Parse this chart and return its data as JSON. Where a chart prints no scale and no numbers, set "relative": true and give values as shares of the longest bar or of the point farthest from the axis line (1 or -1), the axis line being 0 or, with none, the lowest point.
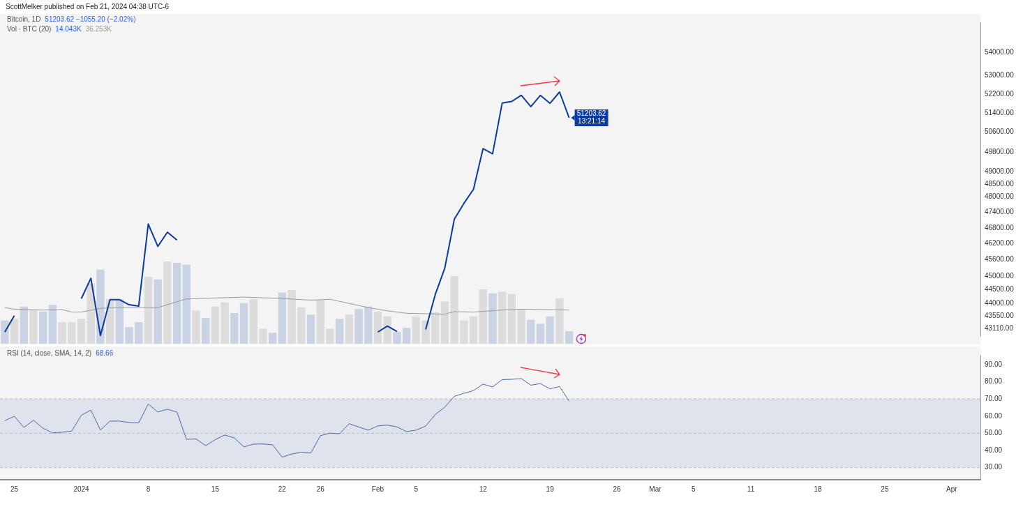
{
  "chart_data": [
    {
      "type": "line",
      "title": "ScottMelker published on Feb 21, 2024 04:38 UTC-6",
      "subtitle": "Bitcoin, 1D",
      "x": [
        "2023-12-24",
        "2023-12-25",
        "2023-12-26",
        "2023-12-27",
        "2023-12-28",
        "2023-12-29",
        "2023-12-30",
        "2023-12-31",
        "2024-01-01",
        "2024-01-02",
        "2024-01-03",
        "2024-01-04",
        "2024-01-05",
        "2024-01-06",
        "2024-01-07",
        "2024-01-08",
        "2024-01-09",
        "2024-01-10",
        "2024-01-11",
        "2024-01-12",
        "2024-01-13",
        "2024-01-14",
        "2024-01-15",
        "2024-01-16",
        "2024-01-17",
        "2024-01-18",
        "2024-01-19",
        "2024-01-20",
        "2024-01-21",
        "2024-01-22",
        "2024-01-23",
        "2024-01-24",
        "2024-01-25",
        "2024-01-26",
        "2024-01-27",
        "2024-01-28",
        "2024-01-29",
        "2024-01-30",
        "2024-01-31",
        "2024-02-01",
        "2024-02-02",
        "2024-02-03",
        "2024-02-04",
        "2024-02-05",
        "2024-02-06",
        "2024-02-07",
        "2024-02-08",
        "2024-02-09",
        "2024-02-10",
        "2024-02-11",
        "2024-02-12",
        "2024-02-13",
        "2024-02-14",
        "2024-02-15",
        "2024-02-16",
        "2024-02-17",
        "2024-02-18",
        "2024-02-19",
        "2024-02-20",
        "2024-02-21"
      ],
      "series": [
        {
          "color": "#0b3a9e",
          "values": [
            42990,
            43570,
            null,
            null,
            null,
            null,
            null,
            null,
            44180,
            44920,
            42870,
            44140,
            44140,
            43960,
            43910,
            46950,
            46100,
            46640,
            46340,
            null,
            null,
            null,
            null,
            null,
            null,
            null,
            null,
            null,
            null,
            null,
            null,
            null,
            null,
            null,
            null,
            null,
            null,
            null,
            null,
            42990,
            43200,
            43010,
            null,
            null,
            43080,
            44320,
            45290,
            47140,
            47750,
            48300,
            49930,
            49720,
            51820,
            51890,
            52150,
            51670,
            52150,
            51810,
            52290,
            51203.62
          ]
        }
      ],
      "xlim": [
        "2023-12-23T12:00",
        "2024-04-04"
      ],
      "ylim": [
        42850,
        55350
      ],
      "log": "y",
      "yticks": [
        {
          "value": 43110,
          "label": "43110.00"
        },
        {
          "value": 43550,
          "label": "43550.00"
        },
        {
          "value": 44000,
          "label": "44000.00"
        },
        {
          "value": 44500,
          "label": "44500.00"
        },
        {
          "value": 45000,
          "label": "45000.00"
        },
        {
          "value": 45600,
          "label": "45600.00"
        },
        {
          "value": 46200,
          "label": "46200.00"
        },
        {
          "value": 46800,
          "label": "46800.00"
        },
        {
          "value": 47400,
          "label": "47400.00"
        },
        {
          "value": 48000,
          "label": "48000.00"
        },
        {
          "value": 48500,
          "label": "48500.00"
        },
        {
          "value": 49000,
          "label": "49000.00"
        },
        {
          "value": 49800,
          "label": "49800.00"
        },
        {
          "value": 50600,
          "label": "50600.00"
        },
        {
          "value": 51400,
          "label": "51400.00"
        },
        {
          "value": 52200,
          "label": "52200.00"
        },
        {
          "value": 53000,
          "label": "53000.00"
        },
        {
          "value": 54000,
          "label": "54000.00"
        }
      ],
      "tick_labels": "y",
      "line_style": "solid",
      "annotations": [
        "51203.62  −1055.20 (−2.02%)",
        {
          "text": "51203.62",
          "x": "2024-02-21",
          "y": 51203.62
        },
        "13:21:14"
      ]
    },
    {
      "type": "bar",
      "title": "Vol · BTC (20)",
      "relative": true,
      "x": [
        "2023-12-24",
        "2023-12-25",
        "2023-12-26",
        "2023-12-27",
        "2023-12-28",
        "2023-12-29",
        "2023-12-30",
        "2023-12-31",
        "2024-01-01",
        "2024-01-02",
        "2024-01-03",
        "2024-01-04",
        "2024-01-05",
        "2024-01-06",
        "2024-01-07",
        "2024-01-08",
        "2024-01-09",
        "2024-01-10",
        "2024-01-11",
        "2024-01-12",
        "2024-01-13",
        "2024-01-14",
        "2024-01-15",
        "2024-01-16",
        "2024-01-17",
        "2024-01-18",
        "2024-01-19",
        "2024-01-20",
        "2024-01-21",
        "2024-01-22",
        "2024-01-23",
        "2024-01-24",
        "2024-01-25",
        "2024-01-26",
        "2024-01-27",
        "2024-01-28",
        "2024-01-29",
        "2024-01-30",
        "2024-01-31",
        "2024-02-01",
        "2024-02-02",
        "2024-02-03",
        "2024-02-04",
        "2024-02-05",
        "2024-02-06",
        "2024-02-07",
        "2024-02-08",
        "2024-02-09",
        "2024-02-10",
        "2024-02-11",
        "2024-02-12",
        "2024-02-13",
        "2024-02-14",
        "2024-02-15",
        "2024-02-16",
        "2024-02-17",
        "2024-02-18",
        "2024-02-19",
        "2024-02-20",
        "2024-02-21"
      ],
      "series": [
        {
          "type": "bar",
          "colors": [
            "#c9d3e3",
            "#dcdcdc",
            "#c9d3e3",
            "#dcdcdc",
            "#c9d3e3",
            "#c9d3e3",
            "#dcdcdc",
            "#dcdcdc",
            "#dcdcdc",
            "#dcdcdc",
            "#c9d3e3",
            "#dcdcdc",
            "#c9d3e3",
            "#c9d3e3",
            "#c9d3e3",
            "#dcdcdc",
            "#c9d3e3",
            "#dcdcdc",
            "#c9d3e3",
            "#c9d3e3",
            "#dcdcdc",
            "#c9d3e3",
            "#dcdcdc",
            "#dcdcdc",
            "#c9d3e3",
            "#c9d3e3",
            "#dcdcdc",
            "#dcdcdc",
            "#c9d3e3",
            "#c9d3e3",
            "#dcdcdc",
            "#dcdcdc",
            "#c9d3e3",
            "#dcdcdc",
            "#dcdcdc",
            "#c9d3e3",
            "#dcdcdc",
            "#c9d3e3",
            "#c9d3e3",
            "#dcdcdc",
            "#dcdcdc",
            "#c9d3e3",
            "#c9d3e3",
            "#dcdcdc",
            "#dcdcdc",
            "#dcdcdc",
            "#dcdcdc",
            "#dcdcdc",
            "#dcdcdc",
            "#dcdcdc",
            "#dcdcdc",
            "#c9d3e3",
            "#dcdcdc",
            "#dcdcdc",
            "#dcdcdc",
            "#c9d3e3",
            "#c9d3e3",
            "#c9d3e3",
            "#dcdcdc",
            "#c9d3e3"
          ],
          "values": [
            0.28,
            0.3,
            0.45,
            0.41,
            0.39,
            0.47,
            0.26,
            0.26,
            0.3,
            0.73,
            0.9,
            0.54,
            0.54,
            0.2,
            0.26,
            0.81,
            0.78,
            1,
            0.98,
            0.96,
            0.4,
            0.31,
            0.45,
            0.5,
            0.37,
            0.49,
            0.54,
            0.18,
            0.13,
            0.62,
            0.65,
            0.44,
            0.35,
            0.53,
            0.18,
            0.3,
            0.35,
            0.42,
            0.45,
            0.39,
            0.33,
            0.14,
            0.19,
            0.33,
            0.28,
            0.38,
            0.51,
            0.82,
            0.28,
            0.33,
            0.66,
            0.61,
            0.63,
            0.6,
            0.42,
            0.29,
            0.24,
            0.33,
            0.55,
            0.15
          ]
        },
        {
          "type": "line",
          "color": "#9a9a9a",
          "x": [
            "2023-12-24",
            "2023-12-25",
            "2023-12-28",
            "2023-12-30",
            "2023-12-31",
            "2024-01-01",
            "2024-01-03",
            "2024-01-05",
            "2024-01-09",
            "2024-01-12",
            "2024-01-18",
            "2024-01-22",
            "2024-01-25",
            "2024-01-27",
            "2024-01-31",
            "2024-02-02",
            "2024-02-04",
            "2024-02-08",
            "2024-02-09",
            "2024-02-11",
            "2024-02-14",
            "2024-02-16",
            "2024-02-21"
          ],
          "values": [
            0.44,
            0.42,
            0.41,
            0.415,
            0.385,
            0.385,
            0.43,
            0.44,
            0.44,
            0.545,
            0.567,
            0.55,
            0.53,
            0.54,
            0.44,
            0.4,
            0.37,
            0.36,
            0.39,
            0.385,
            0.41,
            0.42,
            0.41
          ]
        }
      ],
      "xlim": [
        "2023-12-23T12:00",
        "2024-04-04"
      ],
      "tick_labels": false,
      "annotations": [
        "14.043K",
        "36.253K"
      ]
    },
    {
      "type": "line",
      "title": "RSI (14, close, SMA, 14, 2)",
      "x": [
        "2023-12-24",
        "2023-12-25",
        "2023-12-26",
        "2023-12-27",
        "2023-12-28",
        "2023-12-29",
        "2023-12-30",
        "2023-12-31",
        "2024-01-01",
        "2024-01-02",
        "2024-01-03",
        "2024-01-04",
        "2024-01-05",
        "2024-01-06",
        "2024-01-07",
        "2024-01-08",
        "2024-01-09",
        "2024-01-10",
        "2024-01-11",
        "2024-01-12",
        "2024-01-13",
        "2024-01-14",
        "2024-01-15",
        "2024-01-16",
        "2024-01-17",
        "2024-01-18",
        "2024-01-19",
        "2024-01-20",
        "2024-01-21",
        "2024-01-22",
        "2024-01-23",
        "2024-01-24",
        "2024-01-25",
        "2024-01-26",
        "2024-01-27",
        "2024-01-28",
        "2024-01-29",
        "2024-01-30",
        "2024-01-31",
        "2024-02-01",
        "2024-02-02",
        "2024-02-03",
        "2024-02-04",
        "2024-02-05",
        "2024-02-06",
        "2024-02-07",
        "2024-02-08",
        "2024-02-09",
        "2024-02-10",
        "2024-02-11",
        "2024-02-12",
        "2024-02-13",
        "2024-02-14",
        "2024-02-15",
        "2024-02-16",
        "2024-02-17",
        "2024-02-18",
        "2024-02-19",
        "2024-02-20",
        "2024-02-21"
      ],
      "series": [
        {
          "color": "#4a68a8",
          "values": [
            57.3,
            59.9,
            53.4,
            57.6,
            52.9,
            50.3,
            50.6,
            51.3,
            60.5,
            63.5,
            51.9,
            57.1,
            57.1,
            56.2,
            56.0,
            67.0,
            62.4,
            64.0,
            62.3,
            46.5,
            46.7,
            42.8,
            46.3,
            49.0,
            47.3,
            42.1,
            43.7,
            43.8,
            43.3,
            36.1,
            38.0,
            39.0,
            38.6,
            48.6,
            50.1,
            49.7,
            55.6,
            53.7,
            51.8,
            54.3,
            54.8,
            53.7,
            51.0,
            51.8,
            54.2,
            60.9,
            65.2,
            71.5,
            73.3,
            74.8,
            78.6,
            77.0,
            81.2,
            81.4,
            81.8,
            78.0,
            78.9,
            75.9,
            77.2,
            68.66
          ]
        }
      ],
      "xlim": [
        "2023-12-23T12:00",
        "2024-04-04"
      ],
      "xticks": [
        {
          "value": "2023-12-25",
          "label": "25"
        },
        {
          "value": "2024-01-01",
          "label": "2024"
        },
        {
          "value": "2024-01-08",
          "label": "8"
        },
        {
          "value": "2024-01-15",
          "label": "15"
        },
        {
          "value": "2024-01-22",
          "label": "22"
        },
        {
          "value": "2024-01-26",
          "label": "26"
        },
        {
          "value": "2024-02-01",
          "label": "Feb"
        },
        {
          "value": "2024-02-05",
          "label": "5"
        },
        {
          "value": "2024-02-12",
          "label": "12"
        },
        {
          "value": "2024-02-19",
          "label": "19"
        },
        {
          "value": "2024-02-26",
          "label": "26"
        },
        {
          "value": "2024-03-01",
          "label": "Mar"
        },
        {
          "value": "2024-03-05",
          "label": "5"
        },
        {
          "value": "2024-03-11",
          "label": "11"
        },
        {
          "value": "2024-03-18",
          "label": "18"
        },
        {
          "value": "2024-03-25",
          "label": "25"
        },
        {
          "value": "2024-04-01",
          "label": "Apr"
        }
      ],
      "ylim": [
        23,
        95.6
      ],
      "yticks": [
        {
          "value": 30,
          "label": "30.00"
        },
        {
          "value": 40,
          "label": "40.00"
        },
        {
          "value": 50,
          "label": "50.00"
        },
        {
          "value": 60,
          "label": "60.00"
        },
        {
          "value": 70,
          "label": "70.00"
        },
        {
          "value": 80,
          "label": "80.00"
        },
        {
          "value": 90,
          "label": "90.00"
        }
      ],
      "bands": [
        {
          "axis": "y",
          "from": 30,
          "to": 70,
          "color": "#dfe3eb"
        }
      ],
      "ref_lines": [
        {
          "axis": "y",
          "value": 70,
          "color": "#b4b9c3",
          "line_style": "dashed"
        },
        {
          "axis": "y",
          "value": 50,
          "color": "#b4b9c3",
          "line_style": "dashed"
        },
        {
          "axis": "y",
          "value": 30,
          "color": "#b4b9c3",
          "line_style": "dashed"
        }
      ],
      "annotations": [
        "68.66"
      ]
    }
  ]
}
